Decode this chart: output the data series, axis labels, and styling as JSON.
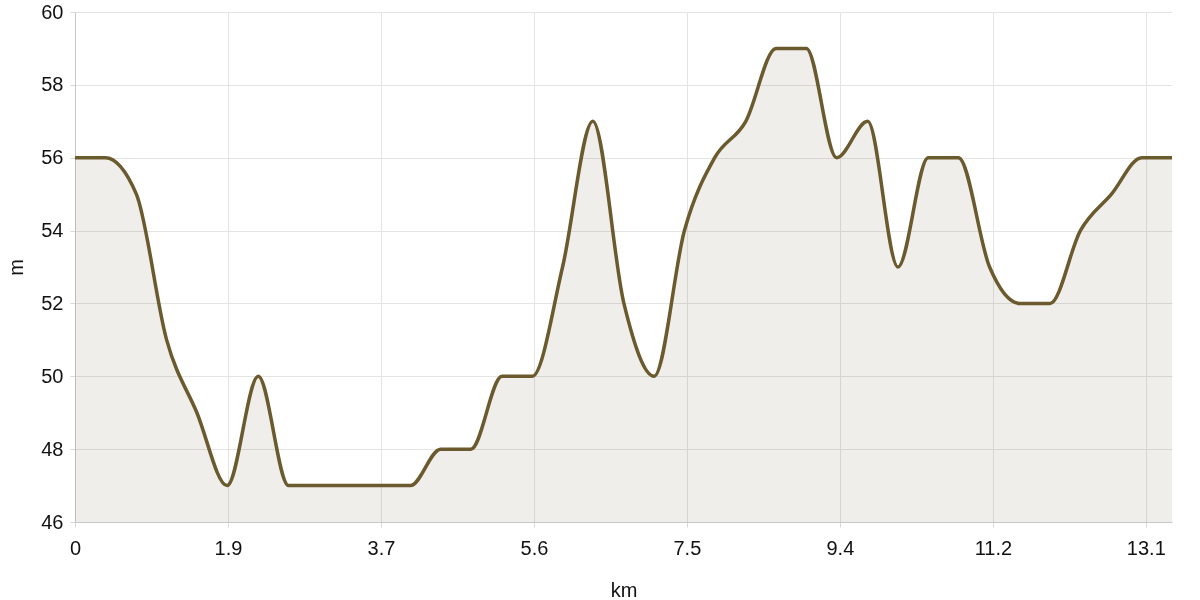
{
  "chart_data": {
    "type": "line",
    "xlabel": "km",
    "ylabel": "m",
    "x": [
      0,
      0.37,
      0.75,
      1.12,
      1.49,
      1.86,
      2.24,
      2.61,
      2.98,
      3.35,
      3.73,
      4.1,
      4.47,
      4.84,
      5.22,
      5.59,
      5.96,
      6.33,
      6.71,
      7.08,
      7.45,
      7.82,
      8.2,
      8.57,
      8.94,
      9.31,
      9.69,
      10.06,
      10.43,
      10.8,
      11.18,
      11.55,
      11.92,
      12.29,
      12.67,
      13.04,
      13.41
    ],
    "series": [
      {
        "color": "#6b5a2e",
        "values": [
          56,
          56,
          55,
          51,
          49,
          47,
          50,
          47,
          47,
          47,
          47,
          47,
          48,
          48,
          50,
          50,
          53,
          57,
          52,
          50,
          54,
          56,
          57,
          59,
          59,
          56,
          57,
          53,
          56,
          56,
          53,
          52,
          52,
          54,
          55,
          56,
          56
        ]
      }
    ],
    "xlim": [
      0,
      13.41
    ],
    "ylim": [
      46,
      60
    ],
    "xticks": [
      0,
      {
        "value": 1.87,
        "label": "1.9"
      },
      {
        "value": 3.74,
        "label": "3.7"
      },
      {
        "value": 5.61,
        "label": "5.6"
      },
      {
        "value": 7.48,
        "label": "7.5"
      },
      {
        "value": 9.35,
        "label": "9.4"
      },
      {
        "value": 11.22,
        "label": "11.2"
      },
      {
        "value": 13.09,
        "label": "13.1"
      }
    ],
    "yticks": [
      46,
      48,
      50,
      52,
      54,
      56,
      58,
      60
    ],
    "grid": true
  }
}
